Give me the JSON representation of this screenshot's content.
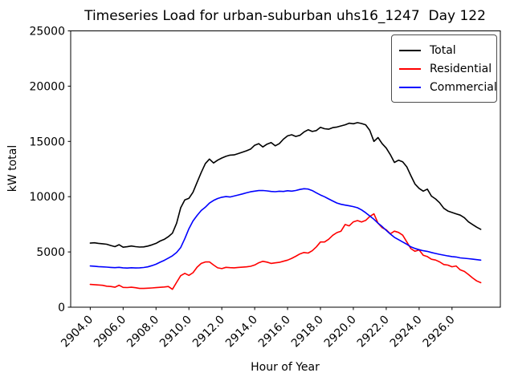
{
  "chart_data": {
    "type": "line",
    "title": "Timeseries Load for urban-suburban uhs16_1247  Day 122",
    "xlabel": "Hour of Year",
    "ylabel": "kW total",
    "xlim": [
      2902.81,
      2928.94
    ],
    "ylim": [
      0,
      25000
    ],
    "grid": false,
    "legend_position": "upper right",
    "xticks": [
      2904,
      2906,
      2908,
      2910,
      2912,
      2914,
      2916,
      2918,
      2920,
      2922,
      2924,
      2926
    ],
    "xtick_labels": [
      "2904.0",
      "2906.0",
      "2908.0",
      "2910.0",
      "2912.0",
      "2914.0",
      "2916.0",
      "2918.0",
      "2920.0",
      "2922.0",
      "2924.0",
      "2926.0"
    ],
    "xtick_rotation_deg": 45,
    "yticks": [
      0,
      5000,
      10000,
      15000,
      20000,
      25000
    ],
    "ytick_labels": [
      "0",
      "5000",
      "10000",
      "15000",
      "20000",
      "25000"
    ],
    "x": {
      "start": 2904.0,
      "step": 0.25,
      "count": 96
    },
    "series": [
      {
        "name": "Total",
        "color": "#000000",
        "values": [
          5800,
          5830,
          5780,
          5740,
          5700,
          5580,
          5480,
          5650,
          5430,
          5470,
          5540,
          5480,
          5440,
          5460,
          5530,
          5640,
          5780,
          5990,
          6140,
          6380,
          6700,
          7600,
          9000,
          9700,
          9850,
          10400,
          11300,
          12200,
          13000,
          13400,
          13050,
          13300,
          13500,
          13650,
          13760,
          13780,
          13900,
          14020,
          14150,
          14300,
          14650,
          14800,
          14500,
          14750,
          14900,
          14600,
          14800,
          15200,
          15500,
          15600,
          15450,
          15550,
          15850,
          16050,
          15900,
          15980,
          16280,
          16150,
          16100,
          16250,
          16300,
          16400,
          16500,
          16650,
          16600,
          16700,
          16620,
          16500,
          16000,
          15000,
          15350,
          14800,
          14400,
          13800,
          13100,
          13300,
          13150,
          12700,
          11900,
          11150,
          10750,
          10500,
          10680,
          10050,
          9800,
          9450,
          8950,
          8700,
          8570,
          8450,
          8330,
          8100,
          7720,
          7480,
          7240,
          7050
        ]
      },
      {
        "name": "Residential",
        "color": "#ff0000",
        "values": [
          2060,
          2040,
          2010,
          1980,
          1900,
          1870,
          1810,
          1990,
          1790,
          1780,
          1810,
          1760,
          1700,
          1700,
          1720,
          1740,
          1770,
          1800,
          1830,
          1870,
          1620,
          2250,
          2850,
          3060,
          2880,
          3120,
          3620,
          3960,
          4090,
          4100,
          3820,
          3560,
          3490,
          3610,
          3580,
          3560,
          3600,
          3620,
          3650,
          3700,
          3820,
          4020,
          4150,
          4080,
          3960,
          4010,
          4060,
          4160,
          4260,
          4420,
          4610,
          4820,
          4950,
          4900,
          5110,
          5460,
          5900,
          5900,
          6150,
          6510,
          6750,
          6880,
          7480,
          7360,
          7720,
          7840,
          7710,
          7850,
          8210,
          8450,
          7600,
          7200,
          7000,
          6640,
          6880,
          6760,
          6520,
          5910,
          5300,
          5060,
          5180,
          4700,
          4580,
          4340,
          4270,
          4100,
          3860,
          3810,
          3660,
          3730,
          3380,
          3240,
          2950,
          2650,
          2380,
          2220
        ]
      },
      {
        "name": "Commercial",
        "color": "#0000ff",
        "values": [
          3730,
          3710,
          3670,
          3650,
          3630,
          3600,
          3580,
          3610,
          3560,
          3540,
          3570,
          3550,
          3560,
          3590,
          3650,
          3760,
          3890,
          4070,
          4240,
          4440,
          4650,
          4950,
          5400,
          6200,
          7100,
          7800,
          8300,
          8750,
          9050,
          9420,
          9660,
          9830,
          9950,
          10010,
          9970,
          10060,
          10150,
          10250,
          10350,
          10440,
          10500,
          10550,
          10560,
          10520,
          10470,
          10450,
          10490,
          10470,
          10540,
          10500,
          10560,
          10650,
          10720,
          10690,
          10550,
          10350,
          10150,
          9990,
          9800,
          9610,
          9430,
          9310,
          9240,
          9170,
          9100,
          9000,
          8800,
          8550,
          8250,
          7950,
          7600,
          7300,
          6950,
          6620,
          6320,
          6110,
          5900,
          5700,
          5460,
          5310,
          5200,
          5110,
          5050,
          4950,
          4860,
          4780,
          4710,
          4640,
          4580,
          4540,
          4460,
          4430,
          4390,
          4350,
          4300,
          4260
        ]
      }
    ]
  }
}
